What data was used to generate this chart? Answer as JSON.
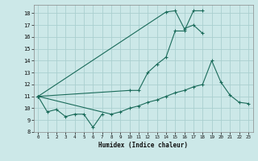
{
  "xlabel": "Humidex (Indice chaleur)",
  "bg_color": "#cce8e8",
  "grid_color": "#aacfcf",
  "line_color": "#1a6b5a",
  "xlim": [
    -0.5,
    23.5
  ],
  "ylim": [
    8,
    18.7
  ],
  "xticks": [
    0,
    1,
    2,
    3,
    4,
    5,
    6,
    7,
    8,
    9,
    10,
    11,
    12,
    13,
    14,
    15,
    16,
    17,
    18,
    19,
    20,
    21,
    22,
    23
  ],
  "yticks": [
    8,
    9,
    10,
    11,
    12,
    13,
    14,
    15,
    16,
    17,
    18
  ],
  "series": [
    {
      "x": [
        0,
        1,
        2,
        3,
        4,
        5,
        6,
        7
      ],
      "y": [
        11.0,
        9.7,
        9.9,
        9.3,
        9.5,
        9.5,
        8.4,
        9.5
      ]
    },
    {
      "x": [
        0,
        10,
        11,
        12,
        13,
        14,
        15,
        16,
        17,
        18
      ],
      "y": [
        11.0,
        11.5,
        11.5,
        13.0,
        13.7,
        14.3,
        16.5,
        16.5,
        18.2,
        18.2
      ]
    },
    {
      "x": [
        0,
        14,
        15,
        16,
        17,
        18
      ],
      "y": [
        11.0,
        18.1,
        18.2,
        16.7,
        17.0,
        16.3
      ]
    },
    {
      "x": [
        0,
        8,
        9,
        10,
        11,
        12,
        13,
        14,
        15,
        16,
        17,
        18,
        19,
        20,
        21,
        22,
        23
      ],
      "y": [
        11.0,
        9.5,
        9.7,
        10.0,
        10.2,
        10.5,
        10.7,
        11.0,
        11.3,
        11.5,
        11.8,
        12.0,
        14.0,
        12.2,
        11.1,
        10.5,
        10.4
      ]
    }
  ]
}
